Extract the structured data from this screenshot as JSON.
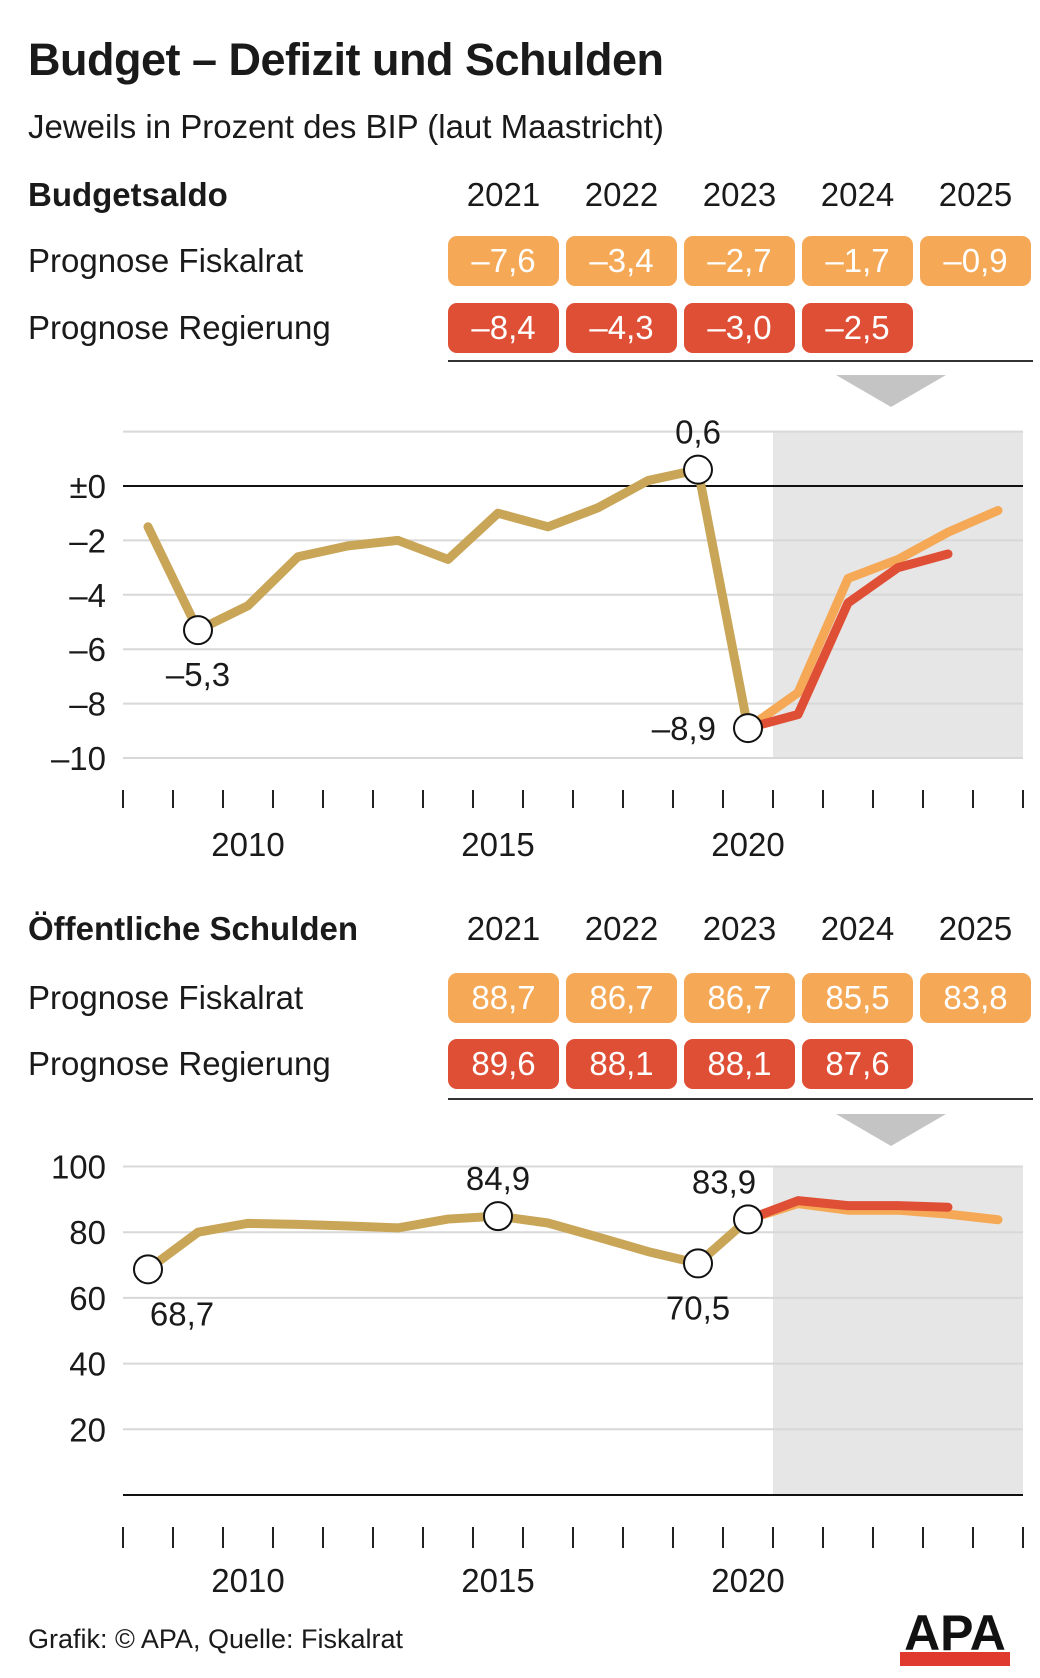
{
  "title": "Budget – Defizit und Schulden",
  "subtitle": "Jeweils in Prozent des BIP (laut Maastricht)",
  "colors": {
    "history": "#C9A557",
    "fiskalrat": "#F5A957",
    "regierung": "#DF4F36",
    "shade": "#E6E6E6"
  },
  "tables": [
    {
      "heading": "Budgetsaldo",
      "years": [
        "2021",
        "2022",
        "2023",
        "2024",
        "2025"
      ],
      "rows": [
        {
          "label": "Prognose Fiskalrat",
          "values": [
            "–7,6",
            "–3,4",
            "–2,7",
            "–1,7",
            "–0,9"
          ]
        },
        {
          "label": "Prognose Regierung",
          "values": [
            "–8,4",
            "–4,3",
            "–3,0",
            "–2,5"
          ]
        }
      ]
    },
    {
      "heading": "Öffentliche Schulden",
      "years": [
        "2021",
        "2022",
        "2023",
        "2024",
        "2025"
      ],
      "rows": [
        {
          "label": "Prognose Fiskalrat",
          "values": [
            "88,7",
            "86,7",
            "86,7",
            "85,5",
            "83,8"
          ]
        },
        {
          "label": "Prognose Regierung",
          "values": [
            "89,6",
            "88,1",
            "88,1",
            "87,6"
          ]
        }
      ]
    }
  ],
  "chart_data": [
    {
      "type": "line",
      "title": "Budgetsaldo",
      "ylim": [
        -10,
        2
      ],
      "yticks": [
        0,
        -2,
        -4,
        -6,
        -8,
        -10
      ],
      "ytick_labels": [
        "±0",
        "–2",
        "–4",
        "–6",
        "–8",
        "–10"
      ],
      "xlabels": [
        "2010",
        "2015",
        "2020"
      ],
      "xlim": [
        2008,
        2025
      ],
      "shaded_from": 2021,
      "series": [
        {
          "name": "Historisch",
          "x": [
            2008,
            2009,
            2010,
            2011,
            2012,
            2013,
            2014,
            2015,
            2016,
            2017,
            2018,
            2019,
            2020
          ],
          "values": [
            -1.5,
            -5.3,
            -4.4,
            -2.6,
            -2.2,
            -2.0,
            -2.7,
            -1.0,
            -1.5,
            -0.8,
            0.2,
            0.6,
            -8.9
          ]
        },
        {
          "name": "Prognose Fiskalrat",
          "x": [
            2020,
            2021,
            2022,
            2023,
            2024,
            2025
          ],
          "values": [
            -8.9,
            -7.6,
            -3.4,
            -2.7,
            -1.7,
            -0.9
          ]
        },
        {
          "name": "Prognose Regierung",
          "x": [
            2020,
            2021,
            2022,
            2023,
            2024
          ],
          "values": [
            -8.9,
            -8.4,
            -4.3,
            -3.0,
            -2.5
          ]
        }
      ],
      "annotations": [
        {
          "x": 2009,
          "y": -5.3,
          "text": "–5,3",
          "pos": "below"
        },
        {
          "x": 2019,
          "y": 0.6,
          "text": "0,6",
          "pos": "above"
        },
        {
          "x": 2020,
          "y": -8.9,
          "text": "–8,9",
          "pos": "left"
        }
      ]
    },
    {
      "type": "line",
      "title": "Öffentliche Schulden",
      "ylim": [
        0,
        100
      ],
      "yticks": [
        100,
        80,
        60,
        40,
        20
      ],
      "ytick_labels": [
        "100",
        "80",
        "60",
        "40",
        "20"
      ],
      "xlabels": [
        "2010",
        "2015",
        "2020"
      ],
      "xlim": [
        2008,
        2025
      ],
      "shaded_from": 2021,
      "series": [
        {
          "name": "Historisch",
          "x": [
            2008,
            2009,
            2010,
            2011,
            2012,
            2013,
            2014,
            2015,
            2016,
            2017,
            2018,
            2019,
            2020
          ],
          "values": [
            68.7,
            80.0,
            82.7,
            82.4,
            81.9,
            81.3,
            84.0,
            84.9,
            82.8,
            78.5,
            74.1,
            70.5,
            83.9
          ]
        },
        {
          "name": "Prognose Fiskalrat",
          "x": [
            2020,
            2021,
            2022,
            2023,
            2024,
            2025
          ],
          "values": [
            83.9,
            88.7,
            86.7,
            86.7,
            85.5,
            83.8
          ]
        },
        {
          "name": "Prognose Regierung",
          "x": [
            2020,
            2021,
            2022,
            2023,
            2024
          ],
          "values": [
            83.9,
            89.6,
            88.1,
            88.1,
            87.6
          ]
        }
      ],
      "annotations": [
        {
          "x": 2008,
          "y": 68.7,
          "text": "68,7",
          "pos": "below"
        },
        {
          "x": 2015,
          "y": 84.9,
          "text": "84,9",
          "pos": "above"
        },
        {
          "x": 2019,
          "y": 70.5,
          "text": "70,5",
          "pos": "below"
        },
        {
          "x": 2020,
          "y": 83.9,
          "text": "83,9",
          "pos": "above"
        }
      ]
    }
  ],
  "footer": "Grafik: © APA, Quelle: Fiskalrat",
  "logo": "APA"
}
